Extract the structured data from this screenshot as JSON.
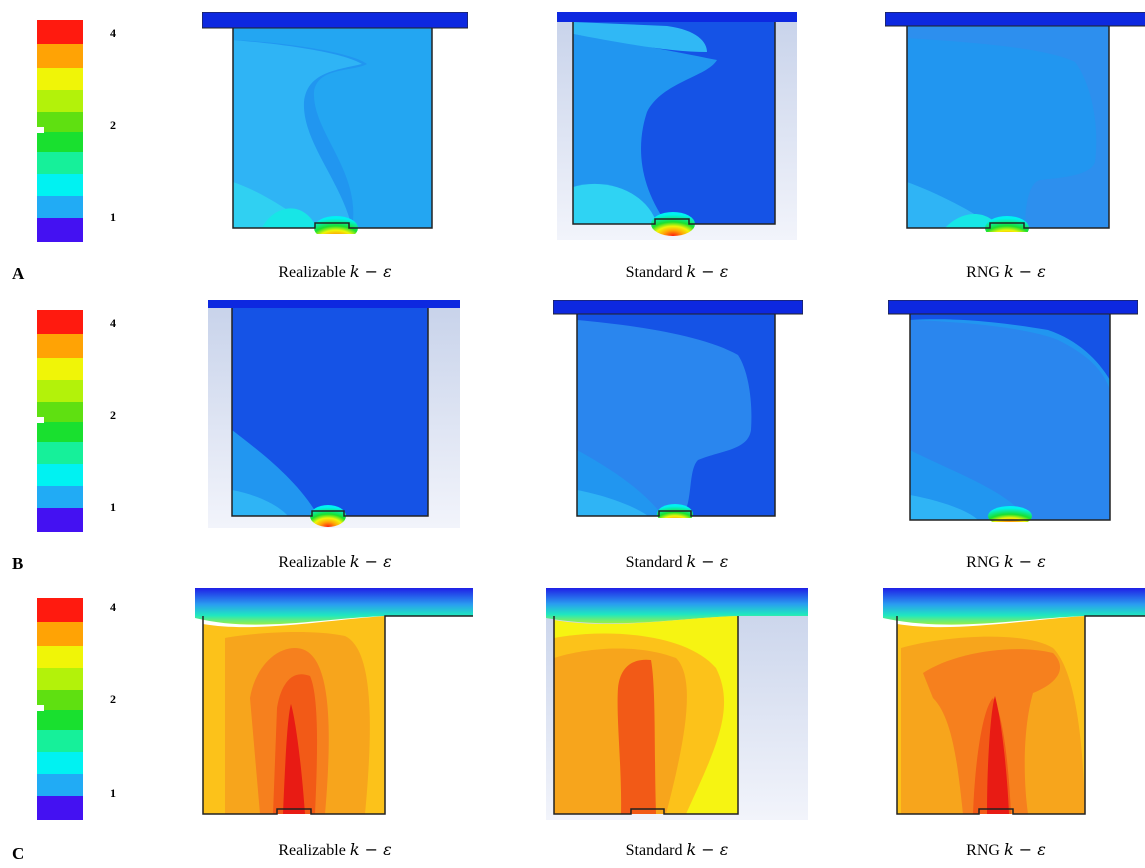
{
  "legend": {
    "ticks": [
      "4",
      "2",
      "1"
    ],
    "colors": [
      "#ff1a0f",
      "#ffa305",
      "#f0f507",
      "#b3f20a",
      "#5fe011",
      "#19e02f",
      "#16f09a",
      "#00f2f2",
      "#21abf5",
      "#4411f2"
    ]
  },
  "rows": [
    {
      "letter": "A",
      "captions": [
        {
          "name": "Realizable",
          "math": "k − ε"
        },
        {
          "name": "Standard",
          "math": "k − ε"
        },
        {
          "name": "RNG",
          "math": "k − ε"
        }
      ]
    },
    {
      "letter": "B",
      "captions": [
        {
          "name": "Realizable",
          "math": "k − ε"
        },
        {
          "name": "Standard",
          "math": "k − ε"
        },
        {
          "name": "RNG",
          "math": "k − ε"
        }
      ]
    },
    {
      "letter": "C",
      "captions": [
        {
          "name": "Realizable",
          "math": "k − ε"
        },
        {
          "name": "Standard",
          "math": "k − ε"
        },
        {
          "name": "RNG",
          "math": "k − ε"
        }
      ]
    }
  ]
}
